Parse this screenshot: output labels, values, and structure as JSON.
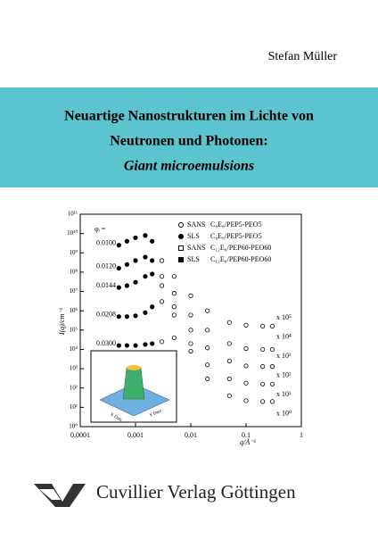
{
  "author": "Stefan Müller",
  "title": {
    "line1": "Neuartige Nanostrukturen im Lichte von",
    "line2": "Neutronen und Photonen:",
    "subtitle": "Giant microemulsions"
  },
  "publisher": "Cuvillier Verlag Göttingen",
  "chart_data": {
    "type": "scatter",
    "y_label": "I(q)/cm⁻¹",
    "x_label": "q/Å⁻¹",
    "log_x": true,
    "log_y": true,
    "xlim": [
      0.0001,
      1
    ],
    "ylim": [
      1,
      100000000000
    ],
    "xticks": [
      0.0001,
      0.001,
      0.01,
      0.1,
      1
    ],
    "yticks": [
      {
        "value": 1,
        "label": "10⁰"
      },
      {
        "value": 10,
        "label": "10¹"
      },
      {
        "value": 100,
        "label": "10²"
      },
      {
        "value": 1000,
        "label": "10³"
      },
      {
        "value": 10000,
        "label": "10⁴"
      },
      {
        "value": 100000,
        "label": "10⁵"
      },
      {
        "value": 1000000,
        "label": "10⁶"
      },
      {
        "value": 10000000,
        "label": "10⁷"
      },
      {
        "value": 100000000,
        "label": "10⁸"
      },
      {
        "value": 1000000000,
        "label": "10⁹"
      },
      {
        "value": 10000000000,
        "label": "10¹⁰"
      },
      {
        "value": 100000000000,
        "label": "10¹¹"
      }
    ],
    "phi_heading": "φᵢ =",
    "legend": [
      {
        "method": "SANS",
        "sample": "C₈E₈/PEP5-PEO5",
        "marker": "open-circle"
      },
      {
        "method": "SLS",
        "sample": "C₈E₈/PEP5-PEO5",
        "marker": "filled-circle"
      },
      {
        "method": "SANS",
        "sample": "C₁₂E₆/PEP60-PEO60",
        "marker": "open-square"
      },
      {
        "method": "SLS",
        "sample": "C₁₂E₆/PEP60-PEO60",
        "marker": "filled-square"
      }
    ],
    "multipliers": [
      "x 10⁵",
      "x 10⁴",
      "x 10³",
      "x 10²",
      "x 10¹",
      "x 10⁰"
    ],
    "inset": {
      "x_label": "X Data",
      "y_label": "Y Data"
    },
    "x": [
      0.0005,
      0.0007,
      0.001,
      0.0015,
      0.002,
      0.003,
      0.005,
      0.01,
      0.02,
      0.05,
      0.1,
      0.2,
      0.3
    ],
    "series": [
      {
        "label": "0.0100",
        "values": [
          2500000000,
          4000000000,
          6000000000,
          8000000000,
          4000000000,
          400000000,
          60000000,
          6000000,
          1000000,
          250000,
          180000,
          160000,
          160000
        ]
      },
      {
        "label": "0.0120",
        "values": [
          160000000,
          250000000,
          400000000,
          600000000,
          400000000,
          60000000,
          8000000,
          600000,
          100000,
          20000,
          11000,
          10000,
          10000
        ]
      },
      {
        "label": "0.0144",
        "values": [
          16000000,
          20000000,
          30000000,
          60000000,
          80000000,
          20000000,
          1600000,
          100000,
          12000,
          2500,
          1400,
          1300,
          1300
        ]
      },
      {
        "label": "0.0208",
        "values": [
          500000,
          500000,
          550000,
          800000,
          1600000,
          3000000,
          600000,
          20000,
          1600,
          300,
          180,
          160,
          160
        ]
      },
      {
        "label": "0.0300",
        "values": [
          16000,
          16000,
          16000,
          18000,
          20000,
          25000,
          40000,
          8000,
          300,
          40,
          22,
          20,
          20
        ]
      }
    ]
  }
}
